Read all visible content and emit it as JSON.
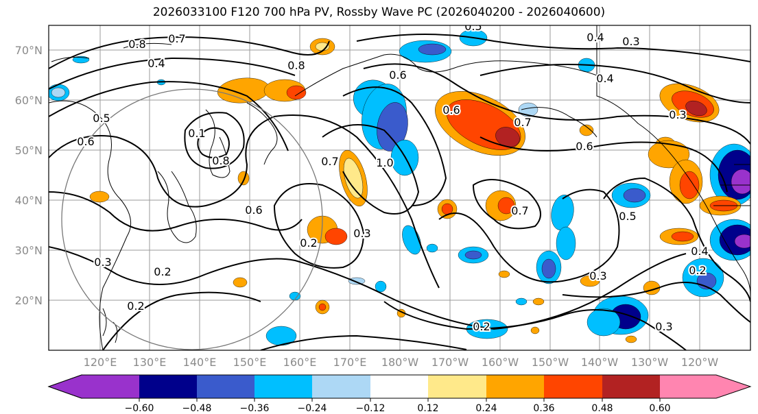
{
  "title": "2026033100 F120 700 hPa PV, Rossby Wave PC (2026040200 - 2026040600)",
  "latitude_labels": [
    "70°N",
    "60°N",
    "50°N",
    "40°N",
    "30°N",
    "20°N"
  ],
  "longitude_labels": [
    "120°E",
    "130°E",
    "140°E",
    "150°E",
    "160°E",
    "170°E",
    "180°W",
    "170°W",
    "160°W",
    "150°W",
    "140°W",
    "130°W",
    "120°W"
  ],
  "contour_labels": [
    "0.5",
    "0.8",
    "0.7",
    "0.4",
    "0.3",
    "0.4",
    "0.8",
    "0.8",
    "0.4",
    "0.5",
    "0.6",
    "0.1",
    "0.8",
    "0.6",
    "0.7",
    "1.0",
    "0.6",
    "0.7",
    "0.6",
    "0.3",
    "0.6",
    "0.2",
    "0.3",
    "0.7",
    "0.5",
    "0.4",
    "0.2",
    "0.3",
    "0.2",
    "0.2",
    "0.3",
    "0.2",
    "0.3"
  ],
  "colorbar": {
    "ticks": [
      "−0.60",
      "−0.48",
      "−0.36",
      "−0.24",
      "−0.12",
      "0.12",
      "0.24",
      "0.36",
      "0.48",
      "0.60"
    ],
    "colors": [
      "#9932cc",
      "#00008b",
      "#3a5bcc",
      "#00bfff",
      "#add8f5",
      "#ffffff",
      "#ffe98a",
      "#ffa500",
      "#ff4500",
      "#b22222",
      "#ff85b0"
    ]
  },
  "fill_colors": {
    "light_blue": "#add8f5",
    "blue": "#00bfff",
    "mid_blue": "#3a5bcc",
    "navy": "#00008b",
    "purple": "#9932cc",
    "yellow": "#ffe98a",
    "orange": "#ffa500",
    "red_orange": "#ff4500",
    "dark_red": "#b22222"
  }
}
